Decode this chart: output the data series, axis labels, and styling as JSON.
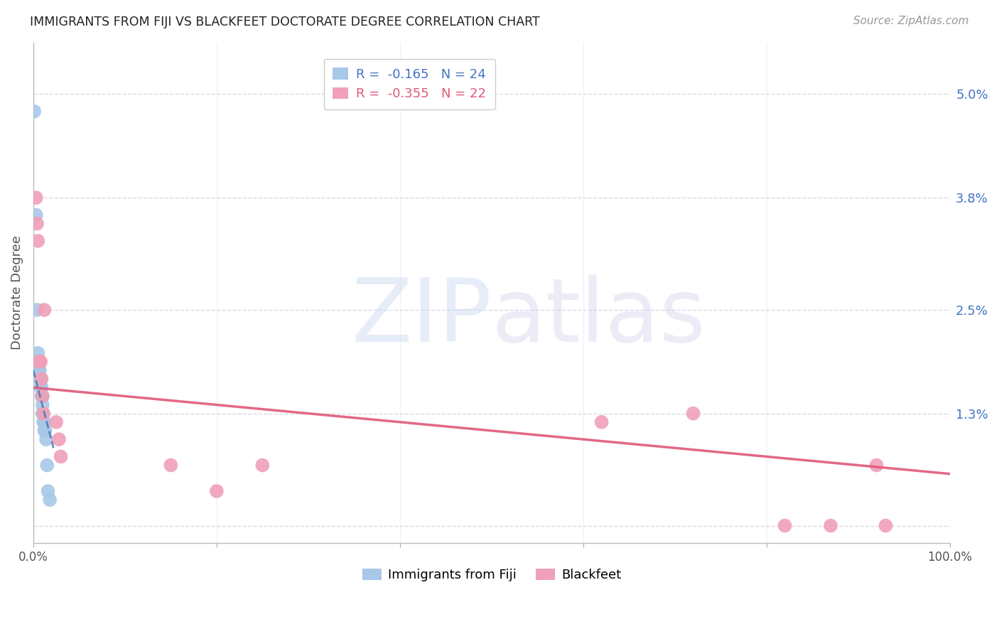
{
  "title": "IMMIGRANTS FROM FIJI VS BLACKFEET DOCTORATE DEGREE CORRELATION CHART",
  "source": "Source: ZipAtlas.com",
  "ylabel": "Doctorate Degree",
  "yticks": [
    0.0,
    0.013,
    0.025,
    0.038,
    0.05
  ],
  "ytick_labels": [
    "",
    "1.3%",
    "2.5%",
    "3.8%",
    "5.0%"
  ],
  "xlim": [
    0.0,
    1.0
  ],
  "ylim": [
    -0.002,
    0.056
  ],
  "fiji_label": "Immigrants from Fiji",
  "blackfeet_label": "Blackfeet",
  "fiji_R": -0.165,
  "fiji_N": 24,
  "blackfeet_R": -0.355,
  "blackfeet_N": 22,
  "fiji_color": "#a8c8e8",
  "blackfeet_color": "#f0a0b8",
  "fiji_line_color": "#4a7ab5",
  "blackfeet_line_color": "#e05878",
  "watermark_zip": "ZIP",
  "watermark_atlas": "atlas",
  "fiji_points_x": [
    0.001,
    0.003,
    0.004,
    0.005,
    0.006,
    0.006,
    0.007,
    0.007,
    0.008,
    0.008,
    0.009,
    0.009,
    0.01,
    0.01,
    0.01,
    0.011,
    0.011,
    0.012,
    0.012,
    0.013,
    0.014,
    0.015,
    0.016,
    0.018
  ],
  "fiji_points_y": [
    0.048,
    0.036,
    0.025,
    0.02,
    0.019,
    0.018,
    0.018,
    0.017,
    0.017,
    0.016,
    0.016,
    0.015,
    0.015,
    0.014,
    0.013,
    0.013,
    0.012,
    0.012,
    0.011,
    0.011,
    0.01,
    0.007,
    0.004,
    0.003
  ],
  "blackfeet_points_x": [
    0.003,
    0.004,
    0.005,
    0.006,
    0.007,
    0.008,
    0.009,
    0.01,
    0.011,
    0.012,
    0.025,
    0.028,
    0.03,
    0.15,
    0.2,
    0.25,
    0.62,
    0.72,
    0.82,
    0.87,
    0.92,
    0.93
  ],
  "blackfeet_points_y": [
    0.038,
    0.035,
    0.033,
    0.019,
    0.019,
    0.019,
    0.017,
    0.015,
    0.013,
    0.025,
    0.012,
    0.01,
    0.008,
    0.007,
    0.004,
    0.007,
    0.012,
    0.013,
    0.0,
    0.0,
    0.007,
    0.0
  ],
  "fiji_trend_x": [
    0.0,
    0.022
  ],
  "fiji_trend_y": [
    0.018,
    0.009
  ],
  "blackfeet_trend_x": [
    0.0,
    1.0
  ],
  "blackfeet_trend_y": [
    0.016,
    0.006
  ],
  "background_color": "#ffffff",
  "grid_color": "#d8d8e8",
  "legend_fiji_text": "R =  -0.165   N = 24",
  "legend_blackfeet_text": "R =  -0.355   N = 22",
  "legend_fiji_color": "#4472c4",
  "legend_blackfeet_color": "#e05878"
}
